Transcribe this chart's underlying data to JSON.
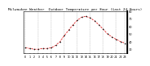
{
  "title": "Milwaukee Weather  Outdoor Temperature per Hour (Last 24 Hours)",
  "hours": [
    0,
    1,
    2,
    3,
    4,
    5,
    6,
    7,
    8,
    9,
    10,
    11,
    12,
    13,
    14,
    15,
    16,
    17,
    18,
    19,
    20,
    21,
    22,
    23
  ],
  "temps": [
    32,
    31,
    30,
    30,
    31,
    31,
    32,
    35,
    40,
    48,
    55,
    62,
    68,
    72,
    73,
    71,
    67,
    62,
    56,
    50,
    46,
    43,
    40,
    38
  ],
  "line_color": "#dd0000",
  "marker_color": "#111111",
  "grid_color": "#aaaaaa",
  "bg_color": "#ffffff",
  "ylim": [
    25,
    80
  ],
  "yticks": [
    30,
    40,
    50,
    60,
    70,
    80
  ],
  "xtick_labels": [
    "0",
    "1",
    "2",
    "3",
    "4",
    "5",
    "6",
    "7",
    "8",
    "9",
    "10",
    "11",
    "12",
    "13",
    "14",
    "15",
    "16",
    "17",
    "18",
    "19",
    "20",
    "21",
    "22",
    "23"
  ],
  "title_fontsize": 3.2,
  "tick_fontsize": 2.5,
  "line_width": 0.5,
  "marker_size": 0.9,
  "grid_xticks": [
    0,
    3,
    6,
    9,
    12,
    15,
    18,
    21,
    23
  ]
}
